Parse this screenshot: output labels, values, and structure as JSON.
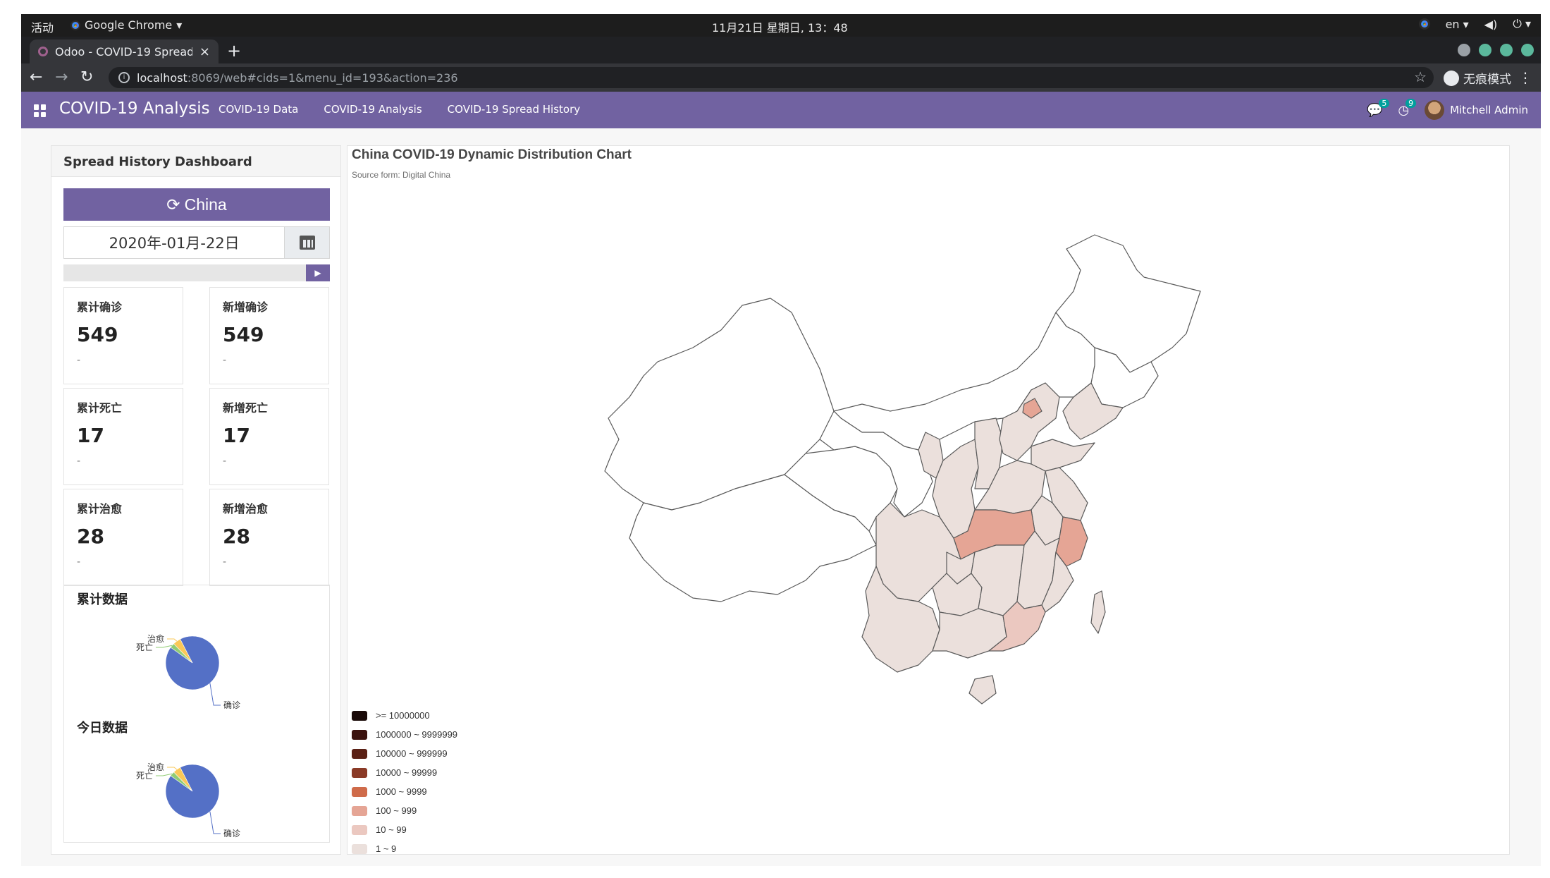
{
  "os_bar": {
    "activities": "活动",
    "app_name": "Google Chrome",
    "clock": "11月21日 星期日, 13：48",
    "lang": "en"
  },
  "browser": {
    "tab_title": "Odoo - COVID-19 Spread H",
    "url_host": "localhost",
    "url_rest": ":8069/web#cids=1&menu_id=193&action=236",
    "incognito_label": "无痕模式"
  },
  "navbar": {
    "brand": "COVID-19 Analysis",
    "menu": [
      "COVID-19 Data",
      "COVID-19 Analysis",
      "COVID-19 Spread History"
    ],
    "messages_count": "5",
    "activities_count": "9",
    "user": "Mitchell Admin"
  },
  "dashboard": {
    "title": "Spread History Dashboard",
    "region_button": "China",
    "date_value": "2020年-01月-22日",
    "stats": [
      {
        "label": "累计确诊",
        "value": "549",
        "sub": "-"
      },
      {
        "label": "新增确诊",
        "value": "549",
        "sub": "-"
      },
      {
        "label": "累计死亡",
        "value": "17",
        "sub": "-"
      },
      {
        "label": "新增死亡",
        "value": "17",
        "sub": "-"
      },
      {
        "label": "累计治愈",
        "value": "28",
        "sub": "-"
      },
      {
        "label": "新增治愈",
        "value": "28",
        "sub": "-"
      }
    ],
    "pie_cumulative_title": "累计数据",
    "pie_today_title": "今日数据",
    "pie_labels": {
      "confirmed": "确诊",
      "death": "死亡",
      "cured": "治愈"
    },
    "pie_colors": {
      "confirmed": "#5470c6",
      "death": "#91cc75",
      "cured": "#fac858"
    }
  },
  "chart_data": [
    {
      "type": "pie",
      "title": "累计数据",
      "categories": [
        "确诊",
        "死亡",
        "治愈"
      ],
      "values": [
        549,
        17,
        28
      ]
    },
    {
      "type": "pie",
      "title": "今日数据",
      "categories": [
        "确诊",
        "死亡",
        "治愈"
      ],
      "values": [
        549,
        17,
        28
      ]
    },
    {
      "type": "map",
      "title": "China COVID-19 Dynamic Distribution Chart",
      "subtitle": "Source form: Digital China",
      "legend_placement": "bottom-left",
      "legend": [
        {
          "label": ">= 10000000",
          "color": "#1a0a08"
        },
        {
          "label": "1000000 ~ 9999999",
          "color": "#3b130e"
        },
        {
          "label": "100000 ~ 999999",
          "color": "#5a2015"
        },
        {
          "label": "10000 ~ 99999",
          "color": "#8a3a26"
        },
        {
          "label": "1000 ~ 9999",
          "color": "#cf6b4a"
        },
        {
          "label": "100 ~ 999",
          "color": "#e5a595"
        },
        {
          "label": "10 ~ 99",
          "color": "#ebc8c0"
        },
        {
          "label": "1 ~ 9",
          "color": "#ebe0dc"
        }
      ]
    }
  ]
}
